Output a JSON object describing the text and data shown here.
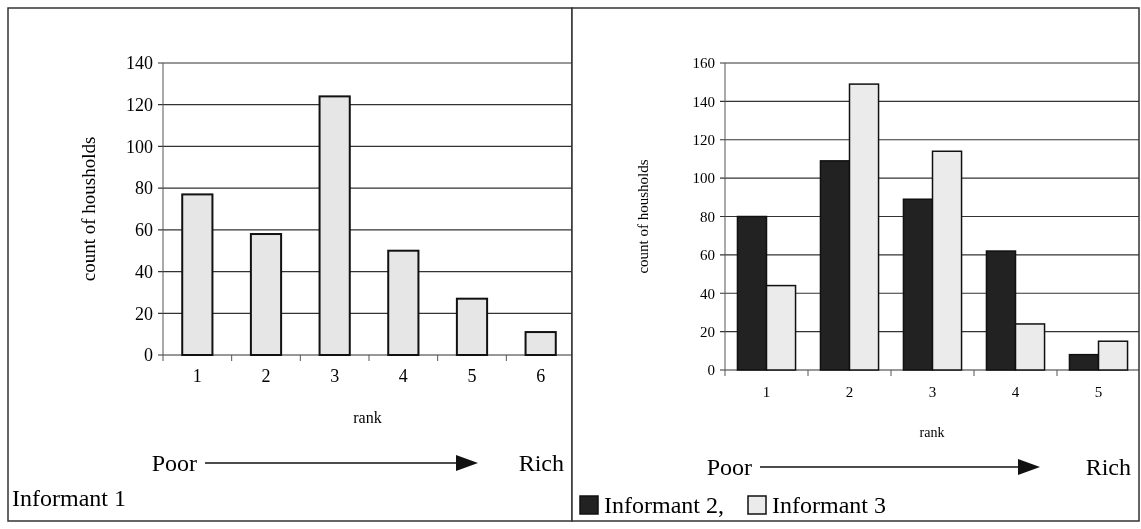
{
  "chart_data": [
    {
      "type": "bar",
      "categories": [
        "1",
        "2",
        "3",
        "4",
        "5",
        "6"
      ],
      "series": [
        {
          "color": "#e6e6e6",
          "values": [
            77,
            58,
            124,
            50,
            27,
            11
          ]
        }
      ],
      "xlabel": "rank",
      "ylabel": "count of housholds",
      "ylim": [
        0,
        140
      ],
      "yticks": [
        0,
        20,
        40,
        60,
        80,
        100,
        120,
        140
      ],
      "grid": "y",
      "annotations": [
        "Poor",
        "Rich",
        "Informant 1"
      ]
    },
    {
      "type": "bar",
      "categories": [
        "1",
        "2",
        "3",
        "4",
        "5"
      ],
      "series": [
        {
          "name": "Informant 2,",
          "color": "#222222",
          "values": [
            80,
            109,
            89,
            62,
            8
          ]
        },
        {
          "name": "Informant 3",
          "color": "#ebebeb",
          "values": [
            44,
            149,
            114,
            24,
            15
          ]
        }
      ],
      "xlabel": "rank",
      "ylabel": "count of housholds",
      "ylim": [
        0,
        160
      ],
      "yticks": [
        0,
        20,
        40,
        60,
        80,
        100,
        120,
        140,
        160
      ],
      "grid": "y",
      "legend": "bottom",
      "annotations": [
        "Poor",
        "Rich"
      ]
    }
  ]
}
